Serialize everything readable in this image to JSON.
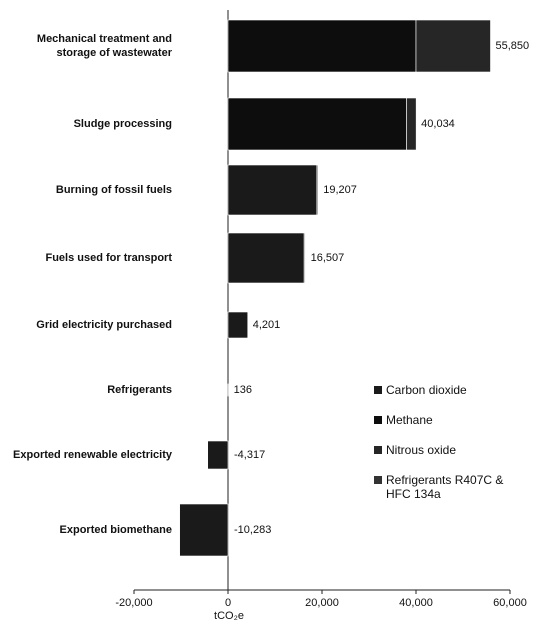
{
  "chart_data": {
    "type": "stacked_barh",
    "categories": [
      "Mechanical treatment and storage of wastewater",
      "Sludge processing",
      "Burning of fossil fuels",
      "Fuels used for transport",
      "Grid electricity purchased",
      "Refrigerants",
      "Exported renewable electricity",
      "Exported biomethane"
    ],
    "series": [
      {
        "name": "Carbon dioxide",
        "color": "#1a1a1a",
        "values": [
          0,
          0,
          18900,
          16200,
          4201,
          0,
          -4317,
          -10283
        ]
      },
      {
        "name": "Methane",
        "color": "#0d0d0d",
        "values": [
          40000,
          38000,
          200,
          200,
          0,
          0,
          0,
          0
        ]
      },
      {
        "name": "Nitrous oxide",
        "color": "#262626",
        "values": [
          15850,
          2034,
          107,
          107,
          0,
          0,
          0,
          0
        ]
      },
      {
        "name": "Refrigerants R407C & HFC 134a",
        "color": "#333333",
        "values": [
          0,
          0,
          0,
          0,
          0,
          136,
          0,
          0
        ]
      }
    ],
    "total_labels": [
      "55,850",
      "40,034",
      "19,207",
      "16,507",
      "4,201",
      "136",
      "-4,317",
      "-10,283"
    ],
    "xlim": [
      -20000,
      60000
    ],
    "xticks": [
      {
        "value": -20000,
        "label": "-20,000"
      },
      0,
      {
        "value": 20000,
        "label": "20,000"
      },
      {
        "value": 40000,
        "label": "40,000"
      },
      {
        "value": 60000,
        "label": "60,000"
      }
    ],
    "xlabel": "tCO₂e"
  }
}
